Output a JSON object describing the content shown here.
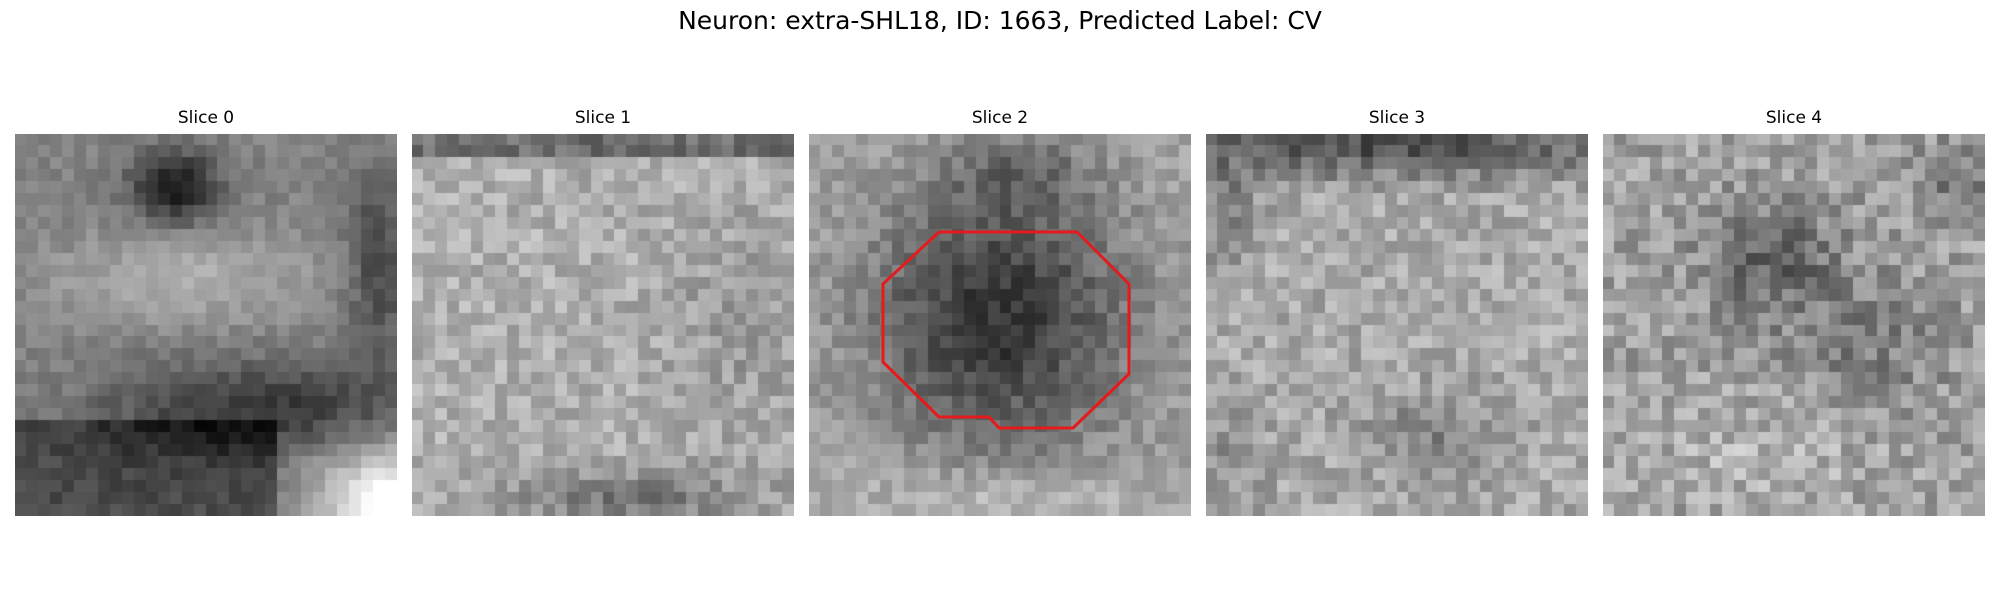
{
  "figure": {
    "title": "Neuron: extra-SHL18, ID: 1663, Predicted Label: CV"
  },
  "panels": [
    {
      "title": "Slice 0",
      "texture": "dark blob at top-center, light band across middle, dark diagonal band lower-right, bright corner bottom-right"
    },
    {
      "title": "Slice 1",
      "texture": "mostly light gray noisy field with darker top and bottom edges"
    },
    {
      "title": "Slice 2",
      "texture": "dark rounded cell body in center on lighter noisy background",
      "has_outline": true
    },
    {
      "title": "Slice 3",
      "texture": "dark band at top, light noisy field below, darker patch bottom-center"
    },
    {
      "title": "Slice 4",
      "texture": "medium gray noisy field with dark cluster upper-middle"
    }
  ],
  "outline": {
    "color": "#e41a1c"
  },
  "colors": {
    "background": "#ffffff",
    "text": "#000000"
  }
}
